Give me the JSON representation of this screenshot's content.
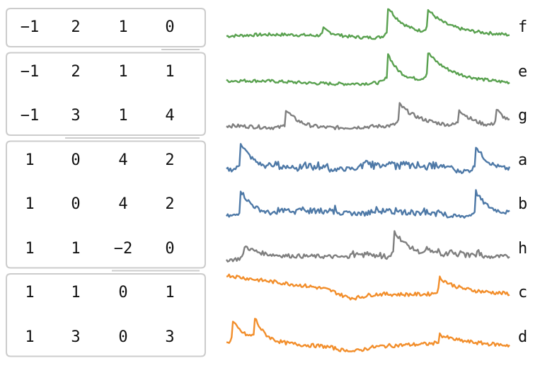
{
  "rows": [
    {
      "label": "f",
      "codes": [
        "−1",
        "2",
        "1",
        "0"
      ],
      "color": "#59a14f",
      "signal": {
        "peaks": [
          0.34,
          0.57,
          0.71
        ],
        "amps": [
          0.25,
          1.0,
          0.75
        ],
        "decay": [
          0.02,
          0.045,
          0.06
        ],
        "base": 0.18,
        "noise": 0.1
      }
    },
    {
      "label": "e",
      "codes": [
        "−1",
        "2",
        "1",
        "1"
      ],
      "color": "#59a14f",
      "signal": {
        "peaks": [
          0.57,
          0.71
        ],
        "amps": [
          0.95,
          0.9
        ],
        "decay": [
          0.02,
          0.06
        ],
        "base": 0.12,
        "noise": 0.1
      }
    },
    {
      "label": "g",
      "codes": [
        "−1",
        "3",
        "1",
        "4"
      ],
      "color": "#7f7f7f",
      "signal": {
        "peaks": [
          0.21,
          0.61,
          0.82,
          0.95
        ],
        "amps": [
          0.6,
          0.7,
          0.55,
          0.6
        ],
        "decay": [
          0.03,
          0.05,
          0.04,
          0.03
        ],
        "base": 0.1,
        "noise": 0.12
      }
    },
    {
      "label": "a",
      "codes": [
        "1",
        "0",
        "4",
        "2"
      ],
      "color": "#4e79a7",
      "signal": {
        "peaks": [
          0.05,
          0.88
        ],
        "amps": [
          0.9,
          0.85
        ],
        "decay": [
          0.03,
          0.025
        ],
        "base": 0.15,
        "noise": 0.14,
        "bands": [
          [
            0.15,
            0.36
          ],
          [
            0.47,
            0.8
          ]
        ]
      }
    },
    {
      "label": "b",
      "codes": [
        "1",
        "0",
        "4",
        "2"
      ],
      "color": "#4e79a7",
      "signal": {
        "peaks": [
          0.05,
          0.88
        ],
        "amps": [
          0.85,
          0.8
        ],
        "decay": [
          0.03,
          0.025
        ],
        "base": 0.12,
        "noise": 0.14,
        "bands": [
          [
            0.18,
            0.4
          ],
          [
            0.5,
            0.78
          ]
        ]
      }
    },
    {
      "label": "h",
      "codes": [
        "1",
        "1",
        "−2",
        "0"
      ],
      "color": "#7f7f7f",
      "signal": {
        "peaks": [
          0.06,
          0.59
        ],
        "amps": [
          0.45,
          0.95
        ],
        "decay": [
          0.05,
          0.05
        ],
        "base": 0.15,
        "noise": 0.13,
        "bands": [
          [
            0.43,
            0.56
          ],
          [
            0.7,
            0.9
          ]
        ]
      }
    },
    {
      "label": "c",
      "codes": [
        "1",
        "1",
        "0",
        "1"
      ],
      "color": "#f28e2b",
      "signal": {
        "peaks": [
          0.0,
          0.75
        ],
        "amps": [
          0.7,
          0.55
        ],
        "decay": [
          0.3,
          0.05
        ],
        "base": 0.35,
        "noise": 0.12,
        "dip": [
          0.44,
          0.2
        ]
      }
    },
    {
      "label": "d",
      "codes": [
        "1",
        "3",
        "0",
        "3"
      ],
      "color": "#f28e2b",
      "signal": {
        "peaks": [
          0.02,
          0.1,
          0.75
        ],
        "amps": [
          0.75,
          0.7,
          0.3
        ],
        "decay": [
          0.03,
          0.015,
          0.05
        ],
        "base": 0.2,
        "noise": 0.12,
        "dip": [
          0.44,
          0.15
        ]
      }
    }
  ],
  "groups": [
    [
      0
    ],
    [
      1,
      2
    ],
    [
      3,
      4,
      5
    ],
    [
      6,
      7
    ]
  ]
}
